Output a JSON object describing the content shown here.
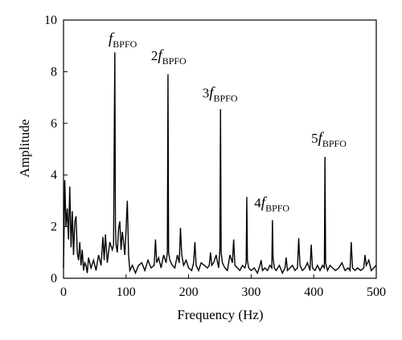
{
  "chart_data": {
    "type": "line",
    "xlabel": "Frequency (Hz)",
    "ylabel": "Amplitude",
    "xlim": [
      0,
      500
    ],
    "ylim": [
      0,
      10
    ],
    "x_ticks": [
      "0",
      "100",
      "200",
      "300",
      "400",
      "500"
    ],
    "y_ticks": [
      "0",
      "2",
      "4",
      "6",
      "8",
      "10"
    ],
    "grid": false,
    "line_color": "#000000",
    "series": [
      {
        "x": [
          0,
          2,
          4,
          6,
          8,
          10,
          12,
          14,
          16,
          18,
          20,
          22,
          24,
          26,
          28,
          30,
          32,
          34,
          36,
          38,
          40,
          44,
          48,
          52,
          56,
          60,
          63,
          65,
          67,
          70,
          74,
          78,
          80,
          82,
          83,
          84,
          86,
          88,
          90,
          92,
          94,
          96,
          98,
          100,
          102,
          103,
          104,
          106,
          110,
          115,
          120,
          125,
          130,
          135,
          140,
          145,
          147,
          149,
          152,
          156,
          160,
          164,
          166,
          167,
          168,
          170,
          174,
          178,
          182,
          185,
          187,
          189,
          192,
          196,
          200,
          205,
          208,
          210,
          212,
          216,
          220,
          225,
          230,
          233,
          235,
          237,
          240,
          244,
          248,
          250,
          251,
          252,
          254,
          258,
          262,
          266,
          270,
          272,
          274,
          278,
          282,
          286,
          290,
          292,
          293,
          294,
          296,
          300,
          305,
          310,
          314,
          316,
          318,
          322,
          326,
          330,
          333,
          334,
          335,
          337,
          340,
          345,
          350,
          354,
          356,
          358,
          362,
          366,
          370,
          374,
          376,
          378,
          382,
          386,
          390,
          394,
          396,
          398,
          402,
          406,
          410,
          414,
          417,
          418,
          419,
          422,
          426,
          430,
          435,
          440,
          445,
          450,
          455,
          458,
          460,
          462,
          466,
          470,
          475,
          480,
          482,
          484,
          488,
          492,
          496,
          500
        ],
        "y": [
          0.4,
          3.8,
          2.0,
          2.7,
          1.5,
          3.55,
          1.2,
          2.6,
          0.9,
          2.2,
          2.4,
          1.0,
          0.7,
          1.4,
          0.5,
          1.1,
          0.3,
          0.6,
          0.5,
          0.2,
          0.8,
          0.4,
          0.7,
          0.3,
          0.9,
          0.5,
          1.6,
          0.7,
          1.7,
          0.6,
          1.4,
          1.1,
          1.3,
          8.75,
          2.0,
          1.3,
          1.0,
          1.9,
          2.2,
          1.1,
          1.8,
          1.4,
          0.9,
          1.9,
          3.0,
          2.0,
          0.9,
          0.3,
          0.5,
          0.2,
          0.5,
          0.6,
          0.3,
          0.7,
          0.4,
          0.5,
          1.5,
          0.6,
          0.8,
          0.4,
          0.9,
          0.6,
          1.0,
          7.9,
          1.0,
          0.7,
          0.5,
          0.4,
          0.9,
          0.6,
          1.95,
          0.9,
          0.5,
          0.7,
          0.4,
          0.3,
          0.6,
          1.4,
          0.5,
          0.3,
          0.6,
          0.5,
          0.4,
          0.5,
          1.0,
          0.5,
          0.6,
          0.9,
          0.4,
          1.1,
          6.55,
          1.0,
          0.6,
          0.4,
          0.3,
          0.9,
          0.6,
          1.5,
          0.5,
          0.4,
          0.3,
          0.5,
          0.4,
          0.6,
          3.15,
          0.7,
          0.4,
          0.3,
          0.4,
          0.2,
          0.5,
          0.7,
          0.3,
          0.4,
          0.3,
          0.5,
          0.4,
          2.25,
          0.8,
          0.4,
          0.3,
          0.5,
          0.2,
          0.4,
          0.8,
          0.3,
          0.4,
          0.5,
          0.3,
          0.4,
          1.55,
          0.5,
          0.3,
          0.4,
          0.6,
          0.3,
          1.3,
          0.4,
          0.3,
          0.5,
          0.3,
          0.5,
          0.4,
          4.7,
          0.6,
          0.3,
          0.5,
          0.4,
          0.3,
          0.4,
          0.6,
          0.3,
          0.4,
          0.3,
          1.4,
          0.4,
          0.3,
          0.4,
          0.3,
          0.4,
          0.9,
          0.5,
          0.7,
          0.3,
          0.4,
          0.5
        ]
      }
    ],
    "annotations": [
      {
        "prefix": "",
        "main": "f",
        "sub": "BPFO",
        "x": 72,
        "y": 9.1
      },
      {
        "prefix": "2",
        "main": "f",
        "sub": "BPFO",
        "x": 140,
        "y": 8.45
      },
      {
        "prefix": "3",
        "main": "f",
        "sub": "BPFO",
        "x": 222,
        "y": 7.0
      },
      {
        "prefix": "4",
        "main": "f",
        "sub": "BPFO",
        "x": 305,
        "y": 2.75
      },
      {
        "prefix": "5",
        "main": "f",
        "sub": "BPFO",
        "x": 396,
        "y": 5.25
      }
    ]
  }
}
